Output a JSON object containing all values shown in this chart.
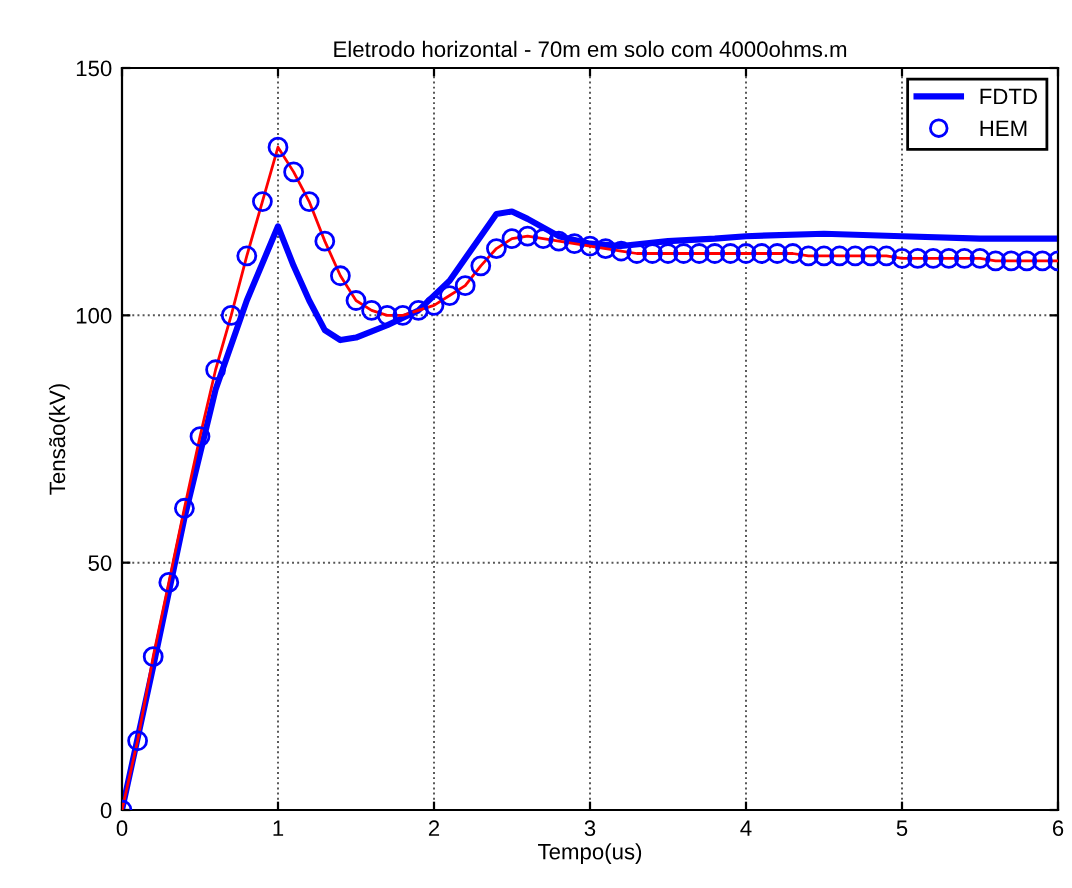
{
  "chart_data": {
    "type": "line",
    "title": "Eletrodo horizontal - 70m em solo com 4000ohms.m",
    "xlabel": "Tempo(us)",
    "ylabel": "Tensão(kV)",
    "xlim": [
      0,
      6
    ],
    "xticks": [
      0,
      1,
      2,
      3,
      4,
      5,
      6
    ],
    "ylim": [
      0,
      150
    ],
    "yticks": [
      0,
      50,
      100,
      150
    ],
    "grid": true,
    "legend": "top right",
    "series": [
      {
        "name": "FDTD",
        "color": "#0000ff",
        "marker": "none",
        "line_style": "solid",
        "x": [
          0,
          0.2,
          0.4,
          0.6,
          0.8,
          1.0,
          1.1,
          1.2,
          1.3,
          1.4,
          1.5,
          1.7,
          1.9,
          2.1,
          2.3,
          2.4,
          2.5,
          2.6,
          2.8,
          3.0,
          3.2,
          3.5,
          3.8,
          4.0,
          4.5,
          5.0,
          5.5,
          6.0
        ],
        "values": [
          0,
          29,
          59,
          85,
          103,
          118,
          110,
          103,
          97,
          95,
          95.5,
          98,
          101,
          107,
          116,
          120.5,
          121,
          119.5,
          116,
          114.5,
          114,
          115,
          115.5,
          116,
          116.5,
          116,
          115.5,
          115.5
        ]
      },
      {
        "color": "#ff0000",
        "marker": "none",
        "line_style": "solid",
        "x": [
          0,
          0.1,
          0.2,
          0.3,
          0.4,
          0.5,
          0.6,
          0.7,
          0.8,
          0.9,
          1.0,
          1.1,
          1.2,
          1.3,
          1.4,
          1.5,
          1.6,
          1.7,
          1.8,
          1.9,
          2.0,
          2.1,
          2.2,
          2.3,
          2.4,
          2.5,
          2.6,
          2.7,
          2.8,
          2.9,
          3.0,
          3.1,
          3.2,
          3.3,
          3.4,
          3.5,
          3.6,
          3.7,
          3.8,
          3.9,
          4.0,
          4.1,
          4.2,
          4.3,
          4.4,
          4.5,
          4.6,
          4.7,
          4.8,
          4.9,
          5.0,
          5.1,
          5.2,
          5.3,
          5.4,
          5.5,
          5.6,
          5.7,
          5.8,
          5.9,
          6.0
        ],
        "values": [
          0,
          14,
          31,
          46,
          61,
          75.5,
          89,
          100,
          112,
          123,
          134,
          129,
          123,
          115,
          108,
          103,
          101,
          100,
          100,
          101,
          102,
          104,
          106,
          110,
          113.5,
          115.5,
          116,
          115.5,
          115,
          114.5,
          114,
          113.5,
          113,
          112.5,
          112.5,
          112.5,
          112.5,
          112.5,
          112.5,
          112.5,
          112.5,
          112.5,
          112.5,
          112.5,
          112,
          112,
          112,
          112,
          112,
          112,
          111.5,
          111.5,
          111.5,
          111.5,
          111.5,
          111.5,
          111,
          111,
          111,
          111,
          111
        ]
      },
      {
        "name": "HEM",
        "type": "scatter",
        "color": "#0000ff",
        "marker": "circle",
        "x": [
          0,
          0.1,
          0.2,
          0.3,
          0.4,
          0.5,
          0.6,
          0.7,
          0.8,
          0.9,
          1.0,
          1.1,
          1.2,
          1.3,
          1.4,
          1.5,
          1.6,
          1.7,
          1.8,
          1.9,
          2.0,
          2.1,
          2.2,
          2.3,
          2.4,
          2.5,
          2.6,
          2.7,
          2.8,
          2.9,
          3.0,
          3.1,
          3.2,
          3.3,
          3.4,
          3.5,
          3.6,
          3.7,
          3.8,
          3.9,
          4.0,
          4.1,
          4.2,
          4.3,
          4.4,
          4.5,
          4.6,
          4.7,
          4.8,
          4.9,
          5.0,
          5.1,
          5.2,
          5.3,
          5.4,
          5.5,
          5.6,
          5.7,
          5.8,
          5.9,
          6.0
        ],
        "values": [
          0,
          14,
          31,
          46,
          61,
          75.5,
          89,
          100,
          112,
          123,
          134,
          129,
          123,
          115,
          108,
          103,
          101,
          100,
          100,
          101,
          102,
          104,
          106,
          110,
          113.5,
          115.5,
          116,
          115.5,
          115,
          114.5,
          114,
          113.5,
          113,
          112.5,
          112.5,
          112.5,
          112.5,
          112.5,
          112.5,
          112.5,
          112.5,
          112.5,
          112.5,
          112.5,
          112,
          112,
          112,
          112,
          112,
          112,
          111.5,
          111.5,
          111.5,
          111.5,
          111.5,
          111.5,
          111,
          111,
          111,
          111,
          111
        ]
      }
    ]
  }
}
